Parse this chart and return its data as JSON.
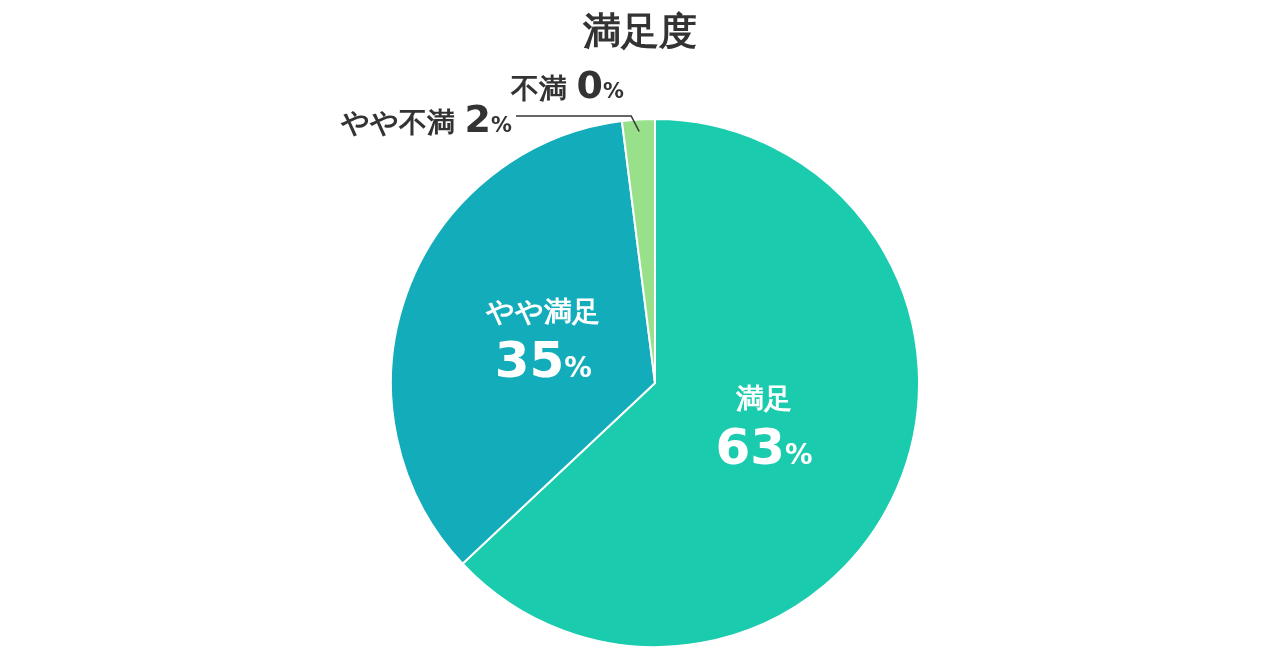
{
  "chart_data": {
    "type": "pie",
    "title": "満足度",
    "categories": [
      "満足",
      "やや満足",
      "やや不満",
      "不満"
    ],
    "values": [
      63,
      35,
      2,
      0
    ],
    "value_labels": [
      "63%",
      "35%",
      "2%",
      "0%"
    ],
    "colors": [
      "#1acbad",
      "#12acba",
      "#98e08a",
      "#c5e86c"
    ]
  }
}
